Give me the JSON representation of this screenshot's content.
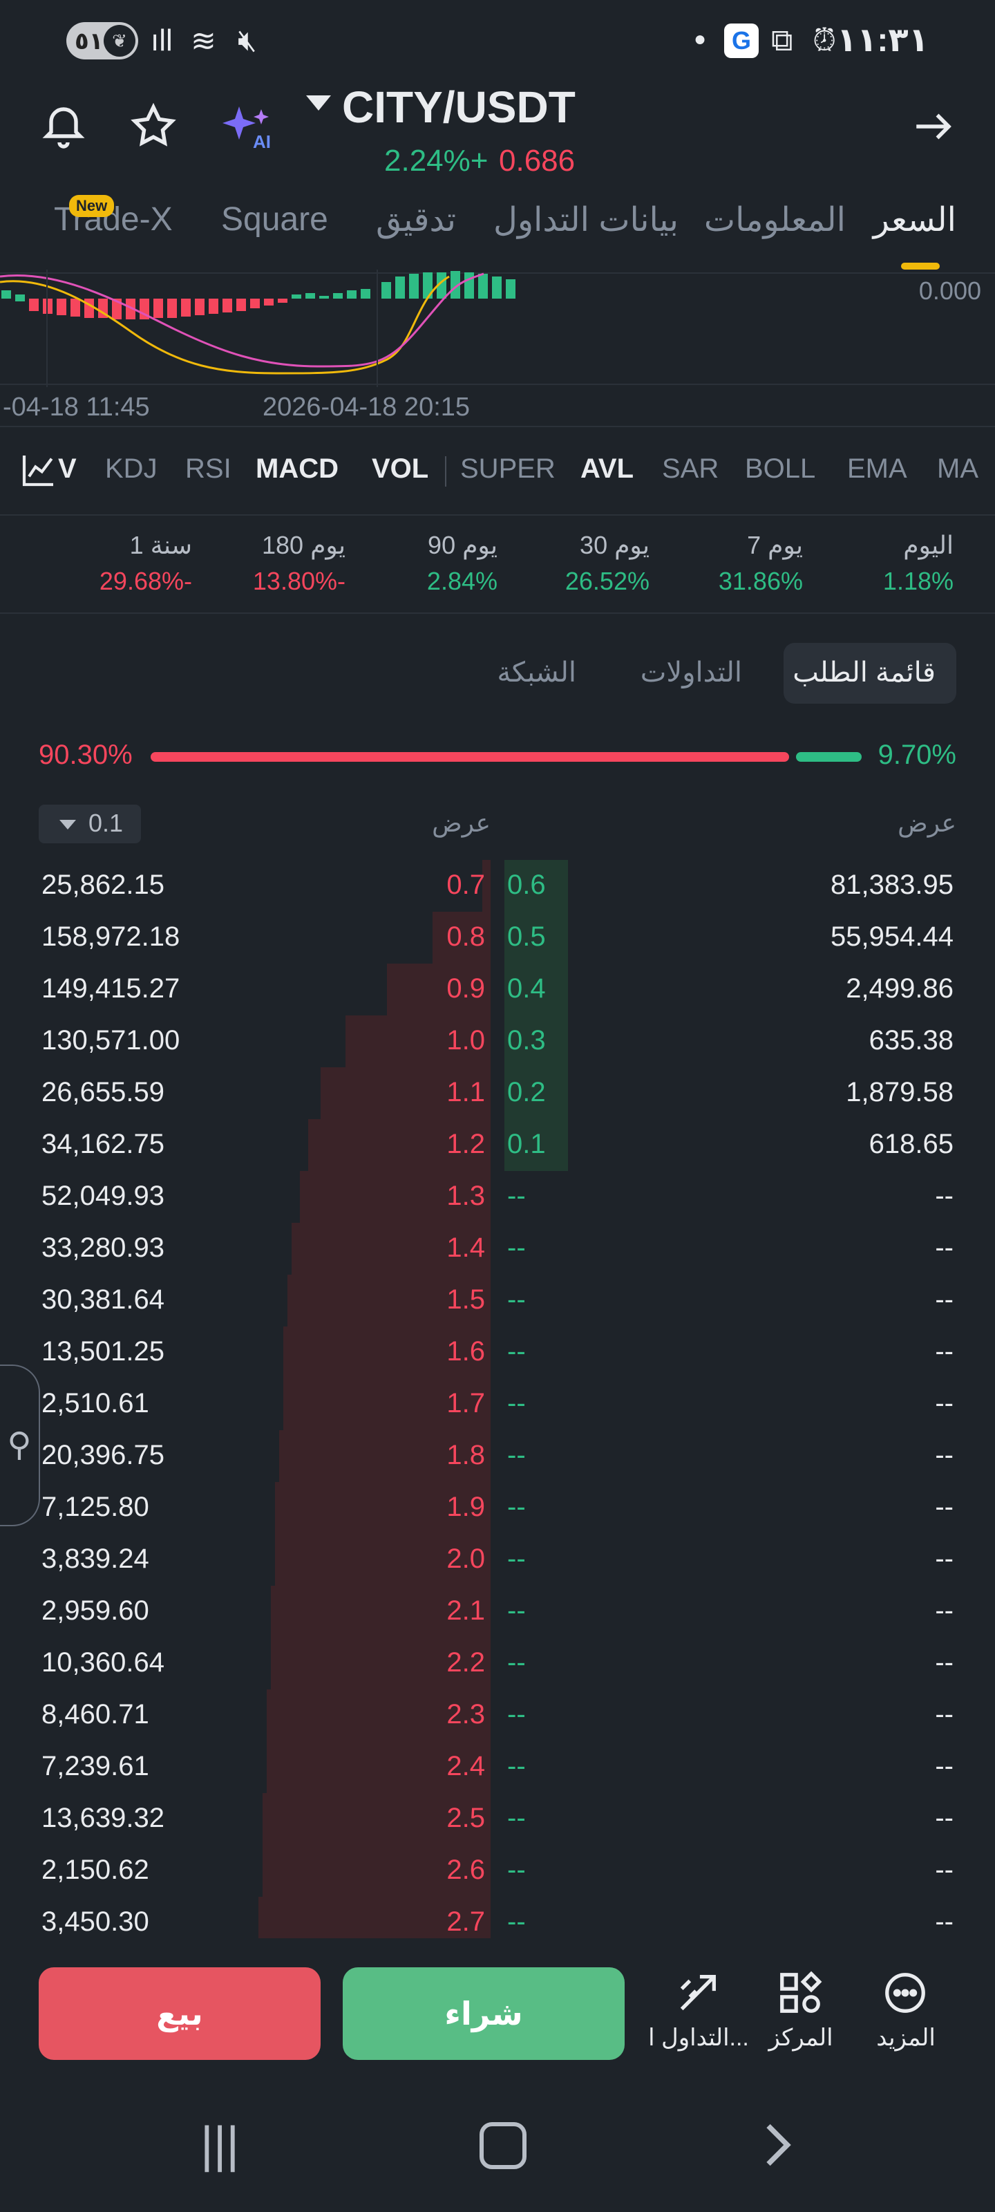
{
  "status_bar": {
    "badge_number": "٥١",
    "time": "١١:٣١",
    "icons": [
      "leaf-icon",
      "signal-icon",
      "wifi-icon",
      "mute-icon",
      "dot-icon",
      "google-icon",
      "screenshot-icon",
      "alarm-off-icon"
    ]
  },
  "header": {
    "pair": "CITY/USDT",
    "change": "2.24%+",
    "price": "0.686",
    "ai_label": "AI"
  },
  "tabs": [
    {
      "label": "السعر",
      "active": true
    },
    {
      "label": "المعلومات"
    },
    {
      "label": "بيانات التداول"
    },
    {
      "label": "تدقيق"
    },
    {
      "label": "Square"
    },
    {
      "label": "Trade-X",
      "badge": "New"
    }
  ],
  "chart": {
    "y_label": "0.000",
    "x_labels": [
      "-04-18 11:45",
      "2026-04-18 20:15"
    ]
  },
  "indicators": [
    "V",
    "KDJ",
    "RSI",
    "MACD",
    "VOL",
    "SUPER",
    "AVL",
    "SAR",
    "BOLL",
    "EMA",
    "MA"
  ],
  "active_indicators": [
    "MACD",
    "VOL",
    "AVL"
  ],
  "performance": [
    {
      "label": "اليوم",
      "value": "1.18%",
      "color": "#2ebd85"
    },
    {
      "label": "7 يوم",
      "value": "31.86%",
      "color": "#2ebd85"
    },
    {
      "label": "30 يوم",
      "value": "26.52%",
      "color": "#2ebd85"
    },
    {
      "label": "90 يوم",
      "value": "2.84%",
      "color": "#2ebd85"
    },
    {
      "label": "180 يوم",
      "value": "13.80%-",
      "color": "#f6465d"
    },
    {
      "label": "1 سنة",
      "value": "29.68%-",
      "color": "#f6465d"
    }
  ],
  "orderbook_tabs": [
    "قائمة الطلب",
    "التداولات",
    "الشبكة"
  ],
  "ratio": {
    "sell": "90.30%",
    "buy": "9.70%"
  },
  "book_header": {
    "left": "عرض",
    "right": "عرض",
    "precision": "0.1"
  },
  "rows": [
    {
      "ask_amount": "25,862.15",
      "ask_price": "0.7",
      "bid_price": "0.6",
      "bid_amount": "81,383.95"
    },
    {
      "ask_amount": "158,972.18",
      "ask_price": "0.8",
      "bid_price": "0.5",
      "bid_amount": "55,954.44"
    },
    {
      "ask_amount": "149,415.27",
      "ask_price": "0.9",
      "bid_price": "0.4",
      "bid_amount": "2,499.86"
    },
    {
      "ask_amount": "130,571.00",
      "ask_price": "1.0",
      "bid_price": "0.3",
      "bid_amount": "635.38"
    },
    {
      "ask_amount": "26,655.59",
      "ask_price": "1.1",
      "bid_price": "0.2",
      "bid_amount": "1,879.58"
    },
    {
      "ask_amount": "34,162.75",
      "ask_price": "1.2",
      "bid_price": "0.1",
      "bid_amount": "618.65"
    },
    {
      "ask_amount": "52,049.93",
      "ask_price": "1.3",
      "bid_price": "--",
      "bid_amount": "--"
    },
    {
      "ask_amount": "33,280.93",
      "ask_price": "1.4",
      "bid_price": "--",
      "bid_amount": "--"
    },
    {
      "ask_amount": "30,381.64",
      "ask_price": "1.5",
      "bid_price": "--",
      "bid_amount": "--"
    },
    {
      "ask_amount": "13,501.25",
      "ask_price": "1.6",
      "bid_price": "--",
      "bid_amount": "--"
    },
    {
      "ask_amount": "2,510.61",
      "ask_price": "1.7",
      "bid_price": "--",
      "bid_amount": "--"
    },
    {
      "ask_amount": "20,396.75",
      "ask_price": "1.8",
      "bid_price": "--",
      "bid_amount": "--"
    },
    {
      "ask_amount": "7,125.80",
      "ask_price": "1.9",
      "bid_price": "--",
      "bid_amount": "--"
    },
    {
      "ask_amount": "3,839.24",
      "ask_price": "2.0",
      "bid_price": "--",
      "bid_amount": "--"
    },
    {
      "ask_amount": "2,959.60",
      "ask_price": "2.1",
      "bid_price": "--",
      "bid_amount": "--"
    },
    {
      "ask_amount": "10,360.64",
      "ask_price": "2.2",
      "bid_price": "--",
      "bid_amount": "--"
    },
    {
      "ask_amount": "8,460.71",
      "ask_price": "2.3",
      "bid_price": "--",
      "bid_amount": "--"
    },
    {
      "ask_amount": "7,239.61",
      "ask_price": "2.4",
      "bid_price": "--",
      "bid_amount": "--"
    },
    {
      "ask_amount": "13,639.32",
      "ask_price": "2.5",
      "bid_price": "--",
      "bid_amount": "--"
    },
    {
      "ask_amount": "2,150.62",
      "ask_price": "2.6",
      "bid_price": "--",
      "bid_amount": "--"
    },
    {
      "ask_amount": "3,450.30",
      "ask_price": "2.7",
      "bid_price": "--",
      "bid_amount": "--"
    }
  ],
  "ask_depth": [
    0.02,
    0.14,
    0.25,
    0.35,
    0.41,
    0.44,
    0.46,
    0.48,
    0.49,
    0.5,
    0.5,
    0.51,
    0.52,
    0.52,
    0.53,
    0.53,
    0.54,
    0.54,
    0.55,
    0.55,
    0.56
  ],
  "bid_depth": [
    1,
    1,
    1,
    1,
    1,
    1,
    0,
    0,
    0,
    0,
    0,
    0,
    0,
    0,
    0,
    0,
    0,
    0,
    0,
    0,
    0
  ],
  "bottom": {
    "sell": "بيع",
    "buy": "شراء",
    "trade": "التداول ا...",
    "center": "المركز",
    "more": "المزيد"
  },
  "colors": {
    "green": "#2ebd85",
    "red": "#f6465d",
    "accent": "#f0b90b",
    "bg": "#1e2329"
  }
}
